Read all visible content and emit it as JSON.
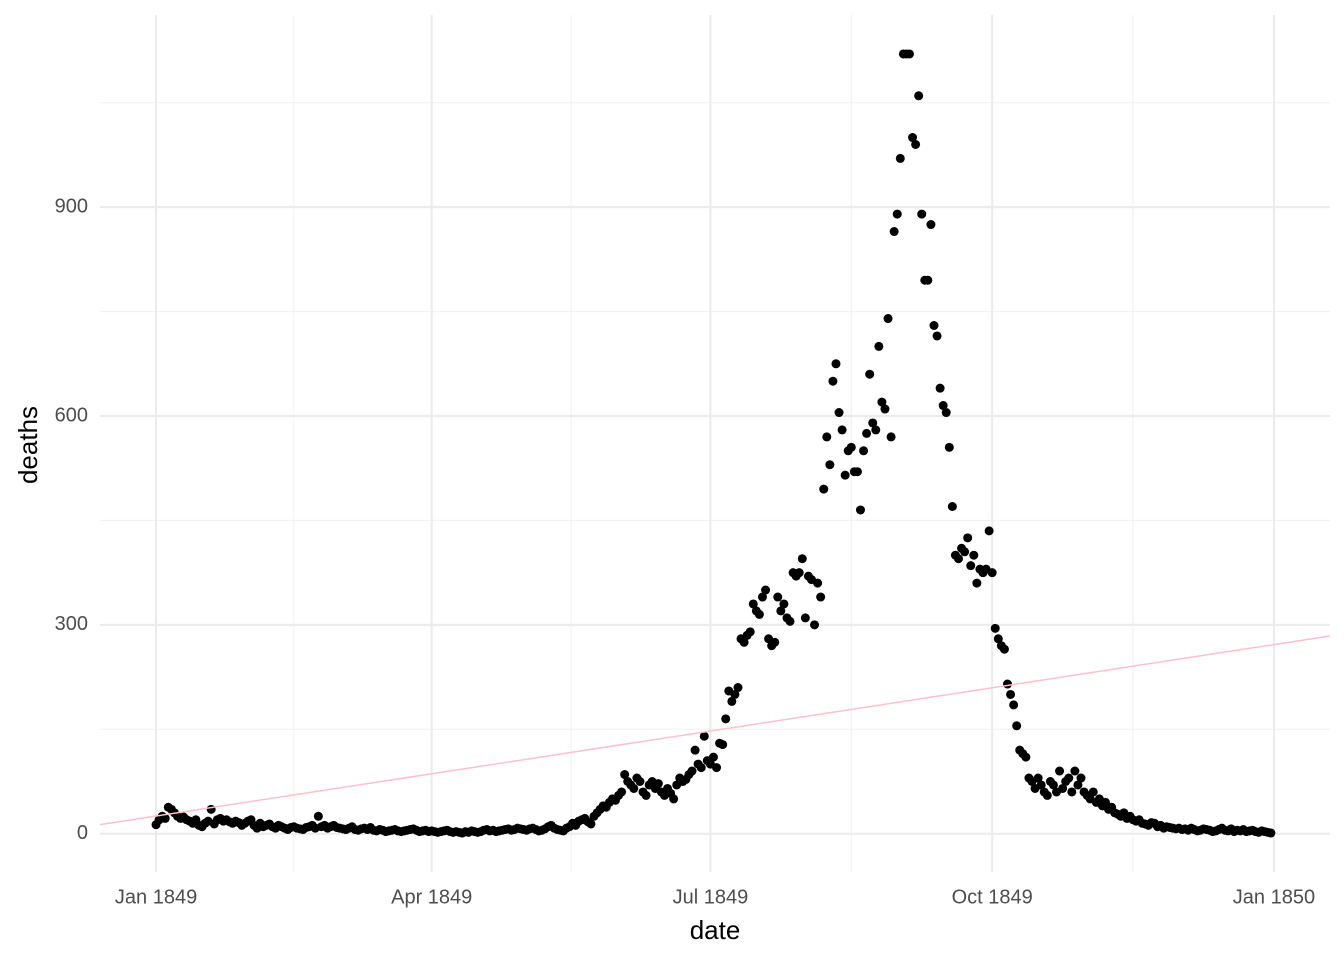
{
  "chart_data": {
    "type": "scatter",
    "x_label": "date",
    "y_label": "deaths",
    "xlim": [
      -18.3,
      383.3
    ],
    "ylim": [
      -55,
      1176
    ],
    "xticks": [
      {
        "value": 0,
        "label": "Jan 1849"
      },
      {
        "value": 90,
        "label": "Apr 1849"
      },
      {
        "value": 181,
        "label": "Jul 1849"
      },
      {
        "value": 273,
        "label": "Oct 1849"
      },
      {
        "value": 365,
        "label": "Jan 1850"
      }
    ],
    "yticks": [
      0,
      300,
      600,
      900
    ],
    "xminor": [
      45,
      135.5,
      227,
      319
    ],
    "yminor": [
      150,
      450,
      750,
      1050
    ],
    "grid": true,
    "series": [
      {
        "color": "#000000",
        "x": [
          0,
          1,
          2,
          3,
          4,
          5,
          6,
          7,
          8,
          9,
          10,
          11,
          12,
          13,
          14,
          15,
          16,
          17,
          18,
          19,
          20,
          21,
          22,
          23,
          24,
          25,
          26,
          27,
          28,
          29,
          30,
          31,
          32,
          33,
          34,
          35,
          36,
          37,
          38,
          39,
          40,
          41,
          42,
          43,
          44,
          45,
          46,
          47,
          48,
          49,
          50,
          51,
          52,
          53,
          54,
          55,
          56,
          57,
          58,
          59,
          60,
          61,
          62,
          63,
          64,
          65,
          66,
          67,
          68,
          69,
          70,
          71,
          72,
          73,
          74,
          75,
          76,
          77,
          78,
          79,
          80,
          81,
          82,
          83,
          84,
          85,
          86,
          87,
          88,
          89,
          90,
          91,
          92,
          93,
          94,
          95,
          96,
          97,
          98,
          99,
          100,
          101,
          102,
          103,
          104,
          105,
          106,
          107,
          108,
          109,
          110,
          111,
          112,
          113,
          114,
          115,
          116,
          117,
          118,
          119,
          120,
          121,
          122,
          123,
          124,
          125,
          126,
          127,
          128,
          129,
          130,
          131,
          132,
          133,
          134,
          135,
          136,
          137,
          138,
          139,
          140,
          141,
          142,
          143,
          144,
          145,
          146,
          147,
          148,
          149,
          150,
          151,
          152,
          153,
          154,
          155,
          156,
          157,
          158,
          159,
          160,
          161,
          162,
          163,
          164,
          165,
          166,
          167,
          168,
          169,
          170,
          171,
          172,
          173,
          174,
          175,
          176,
          177,
          178,
          179,
          180,
          181,
          182,
          183,
          184,
          185,
          186,
          187,
          188,
          189,
          190,
          191,
          192,
          193,
          194,
          195,
          196,
          197,
          198,
          199,
          200,
          201,
          202,
          203,
          204,
          205,
          206,
          207,
          208,
          209,
          210,
          211,
          212,
          213,
          214,
          215,
          216,
          217,
          218,
          219,
          220,
          221,
          222,
          223,
          224,
          225,
          226,
          227,
          228,
          229,
          230,
          231,
          232,
          233,
          234,
          235,
          236,
          237,
          238,
          239,
          240,
          241,
          242,
          243,
          244,
          245,
          246,
          247,
          248,
          249,
          250,
          251,
          252,
          253,
          254,
          255,
          256,
          257,
          258,
          259,
          260,
          261,
          262,
          263,
          264,
          265,
          266,
          267,
          268,
          269,
          270,
          271,
          272,
          273,
          274,
          275,
          276,
          277,
          278,
          279,
          280,
          281,
          282,
          283,
          284,
          285,
          286,
          287,
          288,
          289,
          290,
          291,
          292,
          293,
          294,
          295,
          296,
          297,
          298,
          299,
          300,
          301,
          302,
          303,
          304,
          305,
          306,
          307,
          308,
          309,
          310,
          311,
          312,
          313,
          314,
          315,
          316,
          317,
          318,
          319,
          320,
          321,
          322,
          323,
          324,
          325,
          326,
          327,
          328,
          329,
          330,
          331,
          332,
          333,
          334,
          335,
          336,
          337,
          338,
          339,
          340,
          341,
          342,
          343,
          344,
          345,
          346,
          347,
          348,
          349,
          350,
          351,
          352,
          353,
          354,
          355,
          356,
          357,
          358,
          359,
          360,
          361,
          362,
          363,
          364
        ],
        "values": [
          13,
          20,
          25,
          22,
          38,
          35,
          30,
          25,
          22,
          24,
          20,
          18,
          15,
          20,
          12,
          10,
          15,
          18,
          35,
          14,
          20,
          22,
          18,
          20,
          17,
          15,
          18,
          16,
          12,
          15,
          18,
          20,
          12,
          8,
          15,
          10,
          12,
          14,
          10,
          8,
          12,
          10,
          8,
          6,
          9,
          10,
          8,
          7,
          6,
          9,
          10,
          12,
          8,
          25,
          10,
          12,
          8,
          10,
          12,
          9,
          8,
          7,
          6,
          8,
          10,
          6,
          5,
          7,
          8,
          6,
          9,
          5,
          4,
          6,
          5,
          3,
          4,
          5,
          6,
          4,
          3,
          4,
          5,
          6,
          7,
          5,
          3,
          4,
          5,
          3,
          4,
          3,
          2,
          3,
          4,
          5,
          3,
          2,
          3,
          2,
          1,
          3,
          2,
          4,
          3,
          2,
          3,
          5,
          6,
          4,
          5,
          3,
          4,
          5,
          6,
          7,
          5,
          6,
          8,
          7,
          6,
          5,
          7,
          8,
          6,
          4,
          5,
          7,
          10,
          12,
          8,
          6,
          5,
          4,
          8,
          10,
          15,
          12,
          18,
          20,
          22,
          17,
          14,
          25,
          30,
          35,
          40,
          38,
          45,
          50,
          48,
          55,
          60,
          85,
          75,
          70,
          65,
          80,
          75,
          60,
          55,
          70,
          75,
          65,
          72,
          60,
          55,
          65,
          58,
          50,
          70,
          80,
          75,
          78,
          85,
          90,
          120,
          100,
          95,
          140,
          105,
          100,
          110,
          95,
          130,
          128,
          165,
          205,
          190,
          200,
          210,
          280,
          275,
          285,
          290,
          330,
          320,
          315,
          340,
          350,
          280,
          270,
          275,
          340,
          320,
          330,
          310,
          305,
          375,
          370,
          375,
          395,
          310,
          370,
          365,
          300,
          360,
          340,
          495,
          570,
          530,
          650,
          675,
          605,
          580,
          515,
          550,
          555,
          520,
          520,
          465,
          550,
          575,
          660,
          590,
          580,
          700,
          620,
          610,
          740,
          570,
          865,
          890,
          970,
          1120,
          1120,
          1120,
          1000,
          990,
          1060,
          890,
          795,
          795,
          875,
          730,
          715,
          640,
          615,
          605,
          555,
          470,
          400,
          395,
          410,
          405,
          425,
          385,
          400,
          360,
          380,
          375,
          380,
          435,
          375,
          295,
          280,
          270,
          265,
          215,
          200,
          185,
          155,
          120,
          115,
          110,
          80,
          75,
          65,
          80,
          70,
          60,
          55,
          75,
          70,
          60,
          90,
          65,
          75,
          80,
          60,
          90,
          70,
          80,
          60,
          55,
          50,
          60,
          45,
          50,
          40,
          45,
          35,
          38,
          30,
          28,
          25,
          30,
          22,
          25,
          20,
          18,
          20,
          15,
          14,
          12,
          16,
          15,
          10,
          12,
          8,
          10,
          9,
          8,
          7,
          8,
          6,
          7,
          5,
          8,
          6,
          4,
          5,
          7,
          6,
          5,
          3,
          4,
          6,
          8,
          5,
          4,
          7,
          3,
          5,
          4,
          6,
          3,
          4,
          5,
          3,
          2,
          4,
          3,
          2,
          1
        ]
      }
    ],
    "fit": {
      "color": "#ffc0cb",
      "x": [
        -18.3,
        383.3
      ],
      "values": [
        13,
        284
      ]
    }
  }
}
